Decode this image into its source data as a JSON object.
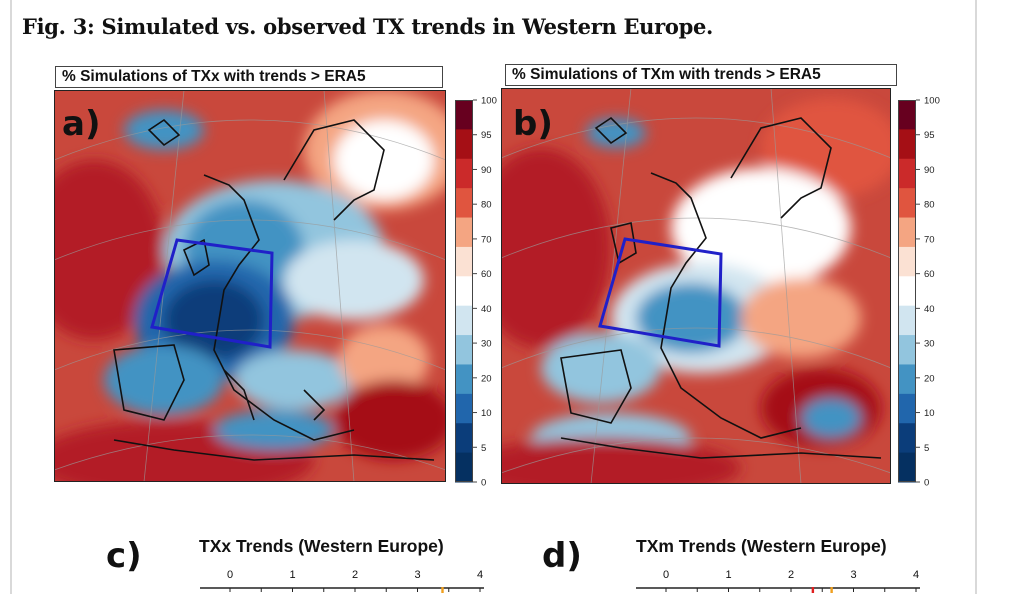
{
  "figure": {
    "caption": "Fig. 3: Simulated vs. observed TX trends in Western Europe."
  },
  "panels": [
    {
      "label": "a)",
      "title": "% Simulations of TXx with trends > ERA5"
    },
    {
      "label": "b)",
      "title": "% Simulations of TXm with trends > ERA5"
    }
  ],
  "colorbar": {
    "ticks": [
      "100",
      "95",
      "90",
      "80",
      "70",
      "60",
      "40",
      "30",
      "20",
      "10",
      "5",
      "0"
    ],
    "colors": [
      "#67001f",
      "#a50f15",
      "#cb2a2a",
      "#e0553f",
      "#f4a582",
      "#fbe1d3",
      "#ffffff",
      "#d1e5f0",
      "#92c5de",
      "#4393c3",
      "#2166ac",
      "#0b3d7a",
      "#053061"
    ]
  },
  "lower": [
    {
      "label": "c)",
      "title": "TXx Trends (Western Europe)",
      "ticks": [
        "0",
        "1",
        "2",
        "3",
        "4"
      ]
    },
    {
      "label": "d)",
      "title": "TXm Trends (Western Europe)",
      "ticks": [
        "0",
        "1",
        "2",
        "3",
        "4"
      ]
    }
  ]
}
